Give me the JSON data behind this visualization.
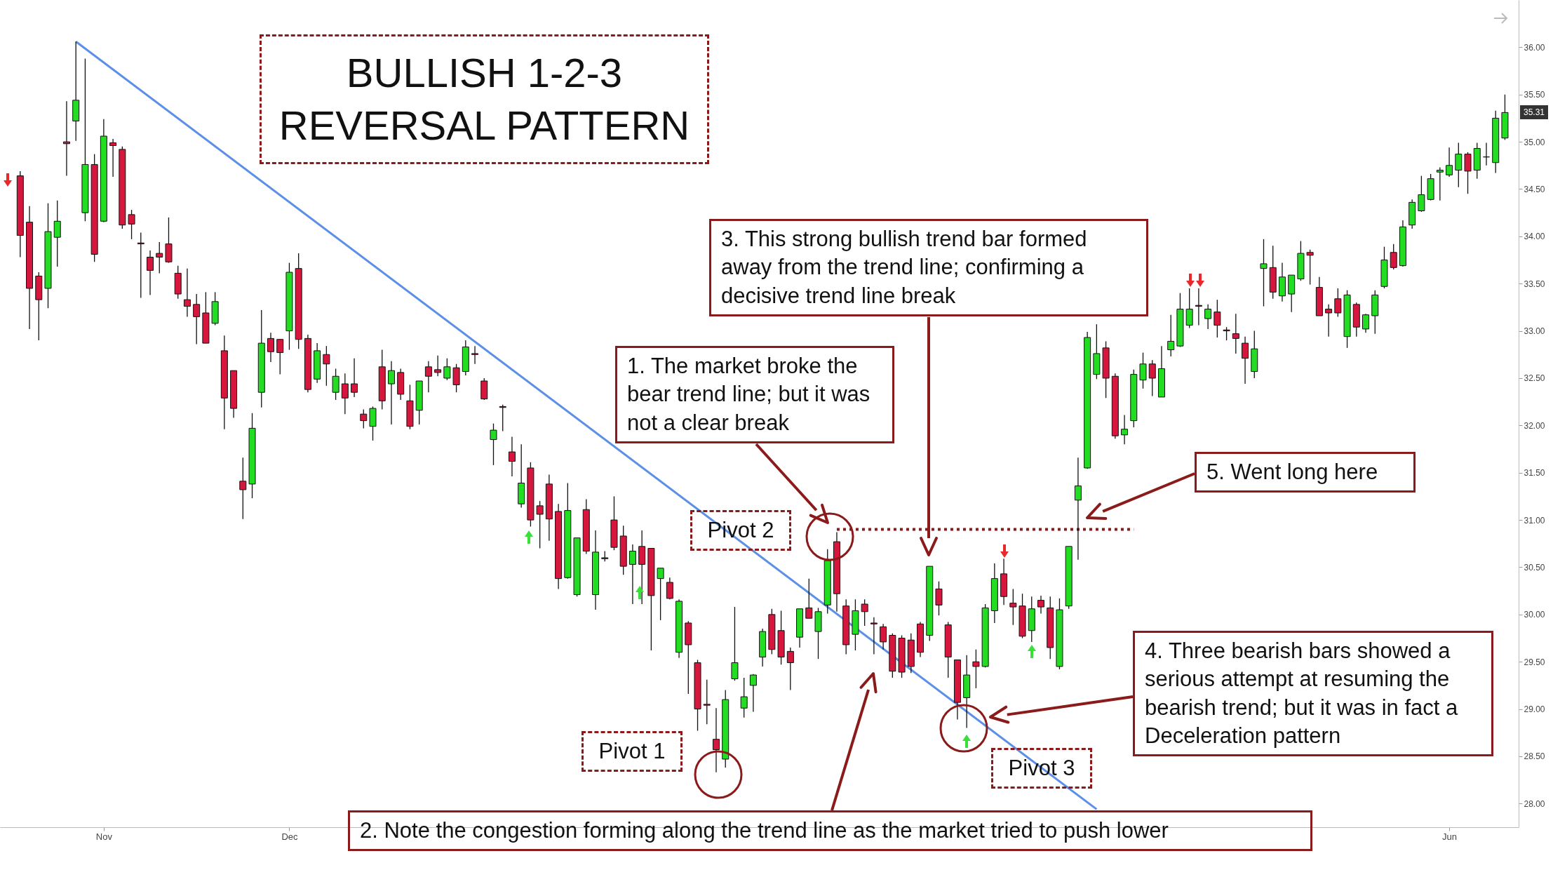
{
  "chart_data": {
    "type": "candlestick",
    "title": "BULLISH 1-2-3 REVERSAL PATTERN",
    "categories": [
      null,
      null,
      null,
      null,
      null,
      null,
      null,
      null,
      null,
      "Nov",
      null,
      null,
      null,
      null,
      null,
      null,
      null,
      null,
      null,
      null,
      null,
      null,
      null,
      null,
      null,
      null,
      null,
      null,
      null,
      "Dec",
      null,
      null,
      null,
      null,
      null,
      null,
      null,
      null,
      null,
      null,
      null,
      null,
      null,
      null,
      null,
      null,
      null,
      null,
      null,
      null,
      null,
      null,
      null,
      null,
      null,
      null,
      null,
      null,
      null,
      null,
      null,
      null,
      null,
      null,
      null,
      null,
      null,
      null,
      null,
      null,
      null,
      null,
      null,
      null,
      null,
      null,
      null,
      null,
      null,
      null,
      null,
      null,
      null,
      null,
      null,
      null,
      null,
      null,
      null,
      null,
      null,
      null,
      null,
      null,
      null,
      null,
      null,
      null,
      null,
      null,
      null,
      null,
      null,
      null,
      null,
      null,
      null,
      null,
      null,
      null,
      null,
      null,
      null,
      null,
      null,
      null,
      null,
      null,
      null,
      null,
      null,
      null,
      null,
      null,
      null,
      null,
      null,
      null,
      null,
      null,
      null,
      null,
      null,
      null,
      null,
      null,
      null,
      null,
      null,
      null,
      null,
      null,
      null,
      null,
      null,
      null,
      null,
      null,
      null,
      null,
      null,
      null,
      null,
      null,
      "Jun",
      null,
      null,
      null,
      null,
      null,
      null
    ],
    "ohlc": [
      [
        34.64,
        34.69,
        33.78,
        34.01
      ],
      [
        34.15,
        34.32,
        33.02,
        33.45
      ],
      [
        33.58,
        33.62,
        32.9,
        33.33
      ],
      [
        33.45,
        34.35,
        33.24,
        34.05
      ],
      [
        33.99,
        34.38,
        33.68,
        34.16
      ],
      [
        35.0,
        35.43,
        34.64,
        34.98
      ],
      [
        35.22,
        36.06,
        35.01,
        35.44
      ],
      [
        34.25,
        35.88,
        34.16,
        34.76
      ],
      [
        34.76,
        34.87,
        33.73,
        33.81
      ],
      [
        34.16,
        35.24,
        34.15,
        35.06
      ],
      [
        34.99,
        35.03,
        34.63,
        34.96
      ],
      [
        34.92,
        34.95,
        34.08,
        34.12
      ],
      [
        34.23,
        34.28,
        33.97,
        34.13
      ],
      [
        33.93,
        34.04,
        33.35,
        33.92
      ],
      [
        33.78,
        33.85,
        33.38,
        33.64
      ],
      [
        33.82,
        33.94,
        33.61,
        33.78
      ],
      [
        33.92,
        34.2,
        33.72,
        33.73
      ],
      [
        33.61,
        33.69,
        33.34,
        33.39
      ],
      [
        33.33,
        33.66,
        33.15,
        33.26
      ],
      [
        33.28,
        33.39,
        32.86,
        33.15
      ],
      [
        33.19,
        33.41,
        32.87,
        32.87
      ],
      [
        33.08,
        33.41,
        33.06,
        33.31
      ],
      [
        32.79,
        32.95,
        31.96,
        32.29
      ],
      [
        32.58,
        32.58,
        32.08,
        32.18
      ],
      [
        31.41,
        31.66,
        31.01,
        31.32
      ],
      [
        31.38,
        32.13,
        31.23,
        31.97
      ],
      [
        32.35,
        33.22,
        32.19,
        32.87
      ],
      [
        32.92,
        32.98,
        32.67,
        32.78
      ],
      [
        32.91,
        32.91,
        32.54,
        32.77
      ],
      [
        33.0,
        33.72,
        32.8,
        33.62
      ],
      [
        33.66,
        33.82,
        32.81,
        32.91
      ],
      [
        32.92,
        32.96,
        32.35,
        32.38
      ],
      [
        32.49,
        32.87,
        32.45,
        32.79
      ],
      [
        32.75,
        32.84,
        32.42,
        32.65
      ],
      [
        32.35,
        32.6,
        32.27,
        32.52
      ],
      [
        32.44,
        32.55,
        32.12,
        32.29
      ],
      [
        32.44,
        32.71,
        32.3,
        32.35
      ],
      [
        32.12,
        32.17,
        31.97,
        32.05
      ],
      [
        31.99,
        32.2,
        31.84,
        32.18
      ],
      [
        32.62,
        32.8,
        32.17,
        32.26
      ],
      [
        32.44,
        32.68,
        32.01,
        32.58
      ],
      [
        32.56,
        32.6,
        32.27,
        32.33
      ],
      [
        32.26,
        32.43,
        31.96,
        31.99
      ],
      [
        32.16,
        32.47,
        32.01,
        32.47
      ],
      [
        32.62,
        32.68,
        32.35,
        32.52
      ],
      [
        32.59,
        32.74,
        32.52,
        32.56
      ],
      [
        32.5,
        32.71,
        32.48,
        32.62
      ],
      [
        32.61,
        32.65,
        32.35,
        32.43
      ],
      [
        32.57,
        32.9,
        32.53,
        32.83
      ],
      [
        32.76,
        32.84,
        32.65,
        32.75
      ],
      [
        32.47,
        32.5,
        32.27,
        32.28
      ],
      [
        31.85,
        32.02,
        31.58,
        31.95
      ],
      [
        32.2,
        32.22,
        31.94,
        32.19
      ],
      [
        31.72,
        31.88,
        31.46,
        31.62
      ],
      [
        31.17,
        31.8,
        31.13,
        31.39
      ],
      [
        31.55,
        31.61,
        30.93,
        31.0
      ],
      [
        31.15,
        31.2,
        30.7,
        31.06
      ],
      [
        31.38,
        31.48,
        30.78,
        31.01
      ],
      [
        31.09,
        31.17,
        30.27,
        30.38
      ],
      [
        30.39,
        31.39,
        30.38,
        31.1
      ],
      [
        30.21,
        30.81,
        30.19,
        30.81
      ],
      [
        31.11,
        31.22,
        30.64,
        30.67
      ],
      [
        30.21,
        30.89,
        30.05,
        30.66
      ],
      [
        30.6,
        30.67,
        30.56,
        30.59
      ],
      [
        31.0,
        31.25,
        30.68,
        30.71
      ],
      [
        30.83,
        30.94,
        30.42,
        30.51
      ],
      [
        30.53,
        30.74,
        30.11,
        30.67
      ],
      [
        30.72,
        30.89,
        30.11,
        30.53
      ],
      [
        30.7,
        30.7,
        29.62,
        30.2
      ],
      [
        30.38,
        30.49,
        29.94,
        30.49
      ],
      [
        30.34,
        30.39,
        30.16,
        30.17
      ],
      [
        29.6,
        30.16,
        29.54,
        30.14
      ],
      [
        29.91,
        29.93,
        29.16,
        29.68
      ],
      [
        29.49,
        29.52,
        28.77,
        29.0
      ],
      [
        29.05,
        29.31,
        28.84,
        29.04
      ],
      [
        28.68,
        29.01,
        28.33,
        28.57
      ],
      [
        28.47,
        29.2,
        28.38,
        29.1
      ],
      [
        29.32,
        30.08,
        29.3,
        29.49
      ],
      [
        29.01,
        29.33,
        28.91,
        29.13
      ],
      [
        29.25,
        29.37,
        28.97,
        29.36
      ],
      [
        29.55,
        29.85,
        29.45,
        29.82
      ],
      [
        30.0,
        30.06,
        29.58,
        29.63
      ],
      [
        29.83,
        30.04,
        29.47,
        29.55
      ],
      [
        29.61,
        29.65,
        29.2,
        29.49
      ],
      [
        29.76,
        30.06,
        29.65,
        30.06
      ],
      [
        30.07,
        30.38,
        29.96,
        29.96
      ],
      [
        29.82,
        30.07,
        29.53,
        30.03
      ],
      [
        30.1,
        30.69,
        30.01,
        30.57
      ],
      [
        30.77,
        30.87,
        30.03,
        30.22
      ],
      [
        30.09,
        30.16,
        29.58,
        29.68
      ],
      [
        29.79,
        30.16,
        29.62,
        30.04
      ],
      [
        30.11,
        30.16,
        29.88,
        30.03
      ],
      [
        29.91,
        29.97,
        29.58,
        29.9
      ],
      [
        29.87,
        29.9,
        29.63,
        29.71
      ],
      [
        29.78,
        29.8,
        29.33,
        29.4
      ],
      [
        29.75,
        29.78,
        29.33,
        29.39
      ],
      [
        29.73,
        29.8,
        29.38,
        29.45
      ],
      [
        29.9,
        29.92,
        29.55,
        29.6
      ],
      [
        29.78,
        30.51,
        29.72,
        30.51
      ],
      [
        30.27,
        30.35,
        29.99,
        30.1
      ],
      [
        29.89,
        29.92,
        29.33,
        29.55
      ],
      [
        29.52,
        29.52,
        28.89,
        29.07
      ],
      [
        29.12,
        29.57,
        28.8,
        29.36
      ],
      [
        29.5,
        29.63,
        29.22,
        29.45
      ],
      [
        29.45,
        30.11,
        29.44,
        30.07
      ],
      [
        30.04,
        30.54,
        29.91,
        30.38
      ],
      [
        30.43,
        30.59,
        30.1,
        30.19
      ],
      [
        30.12,
        30.27,
        29.89,
        30.08
      ],
      [
        30.09,
        30.22,
        29.75,
        29.77
      ],
      [
        29.83,
        30.19,
        29.71,
        30.06
      ],
      [
        30.15,
        30.2,
        30.01,
        30.08
      ],
      [
        30.07,
        30.19,
        29.53,
        29.65
      ],
      [
        29.45,
        30.17,
        29.42,
        30.05
      ],
      [
        30.09,
        30.72,
        30.06,
        30.72
      ],
      [
        31.21,
        31.66,
        30.58,
        31.36
      ],
      [
        31.55,
        32.99,
        31.54,
        32.93
      ],
      [
        32.54,
        33.07,
        32.49,
        32.76
      ],
      [
        32.82,
        32.89,
        32.29,
        32.5
      ],
      [
        32.52,
        32.55,
        31.86,
        31.89
      ],
      [
        31.9,
        32.11,
        31.8,
        31.96
      ],
      [
        32.05,
        32.59,
        31.98,
        32.54
      ],
      [
        32.48,
        32.77,
        32.39,
        32.65
      ],
      [
        32.65,
        32.69,
        32.31,
        32.5
      ],
      [
        32.3,
        32.84,
        32.3,
        32.6
      ],
      [
        32.8,
        33.17,
        32.73,
        32.89
      ],
      [
        32.84,
        33.4,
        32.83,
        33.23
      ],
      [
        33.06,
        33.45,
        33.03,
        33.23
      ],
      [
        33.27,
        33.45,
        33.06,
        33.26
      ],
      [
        33.13,
        33.28,
        33.02,
        33.23
      ],
      [
        33.2,
        33.33,
        32.93,
        33.06
      ],
      [
        33.01,
        33.04,
        32.9,
        33.0
      ],
      [
        32.97,
        33.18,
        32.76,
        32.92
      ],
      [
        32.87,
        32.94,
        32.44,
        32.71
      ],
      [
        32.57,
        33.0,
        32.5,
        32.81
      ],
      [
        33.66,
        33.97,
        33.26,
        33.71
      ],
      [
        33.67,
        33.9,
        33.34,
        33.41
      ],
      [
        33.37,
        33.72,
        33.31,
        33.57
      ],
      [
        33.39,
        33.59,
        33.2,
        33.59
      ],
      [
        33.55,
        33.95,
        33.53,
        33.82
      ],
      [
        33.83,
        33.86,
        33.49,
        33.8
      ],
      [
        33.46,
        33.57,
        33.16,
        33.16
      ],
      [
        33.23,
        33.28,
        32.94,
        33.19
      ],
      [
        33.34,
        33.45,
        33.15,
        33.19
      ],
      [
        32.94,
        33.43,
        32.82,
        33.38
      ],
      [
        33.28,
        33.3,
        32.94,
        33.04
      ],
      [
        33.02,
        33.18,
        32.98,
        33.17
      ],
      [
        33.16,
        33.43,
        32.97,
        33.38
      ],
      [
        33.47,
        33.89,
        33.45,
        33.75
      ],
      [
        33.83,
        33.92,
        33.65,
        33.67
      ],
      [
        33.69,
        34.17,
        33.68,
        34.1
      ],
      [
        34.12,
        34.39,
        34.08,
        34.36
      ],
      [
        34.27,
        34.64,
        34.26,
        34.44
      ],
      [
        34.39,
        34.66,
        34.38,
        34.61
      ],
      [
        34.68,
        34.73,
        34.38,
        34.7
      ],
      [
        34.65,
        34.94,
        34.63,
        34.75
      ],
      [
        34.7,
        34.99,
        34.52,
        34.87
      ],
      [
        34.87,
        34.89,
        34.45,
        34.69
      ],
      [
        34.7,
        34.99,
        34.61,
        34.93
      ],
      [
        34.84,
        34.99,
        34.75,
        34.84
      ],
      [
        34.78,
        35.33,
        34.67,
        35.25
      ],
      [
        35.04,
        35.5,
        35.02,
        35.31
      ]
    ],
    "series": [
      {
        "type": "line",
        "values": [
          null,
          null,
          null,
          null,
          null,
          null,
          36.06,
          null,
          null,
          null,
          null,
          null,
          null,
          null,
          null,
          null,
          null,
          null,
          null,
          null,
          null,
          null,
          null,
          null,
          null,
          null,
          null,
          null,
          null,
          null,
          null,
          null,
          null,
          null,
          null,
          null,
          null,
          null,
          null,
          null,
          null,
          null,
          null,
          null,
          null,
          null,
          null,
          null,
          null,
          null,
          null,
          null,
          null,
          null,
          null,
          null,
          null,
          null,
          null,
          null,
          null,
          null,
          null,
          null,
          null,
          null,
          null,
          null,
          null,
          null,
          null,
          null,
          null,
          null,
          null,
          null,
          null,
          null,
          null,
          null,
          null,
          null,
          null,
          null,
          null,
          null,
          null,
          null,
          null,
          null,
          null,
          null,
          null,
          null,
          null,
          null,
          null,
          null,
          null,
          null,
          null,
          null,
          null,
          null,
          null,
          null,
          null,
          null,
          null,
          null,
          null,
          null,
          null,
          null,
          null,
          null,
          27.94,
          null,
          null,
          null,
          null,
          null,
          null,
          null,
          null,
          null,
          null,
          null,
          null,
          null,
          null,
          null,
          null,
          null,
          null,
          null,
          null,
          null,
          null,
          null,
          null,
          null,
          null,
          null,
          null,
          null,
          null,
          null,
          null,
          null,
          null,
          null,
          null,
          null,
          null,
          null,
          null,
          null,
          null,
          null,
          null
        ],
        "color": "#5b8fe8"
      },
      {
        "type": "line",
        "values": [
          null,
          null,
          null,
          null,
          null,
          null,
          null,
          null,
          null,
          null,
          null,
          null,
          null,
          null,
          null,
          null,
          null,
          null,
          null,
          null,
          null,
          null,
          null,
          null,
          null,
          null,
          null,
          null,
          null,
          null,
          null,
          null,
          null,
          null,
          null,
          null,
          null,
          null,
          null,
          null,
          null,
          null,
          null,
          null,
          null,
          null,
          null,
          null,
          null,
          null,
          null,
          null,
          null,
          null,
          null,
          null,
          null,
          null,
          null,
          null,
          null,
          null,
          null,
          null,
          null,
          null,
          null,
          null,
          null,
          null,
          null,
          null,
          null,
          null,
          null,
          null,
          null,
          null,
          null,
          null,
          null,
          null,
          null,
          null,
          null,
          null,
          null,
          null,
          30.9,
          null,
          null,
          null,
          null,
          null,
          null,
          null,
          null,
          null,
          null,
          null,
          null,
          null,
          null,
          null,
          null,
          null,
          null,
          null,
          null,
          null,
          null,
          null,
          null,
          null,
          null,
          null,
          null,
          null,
          null,
          null,
          30.9,
          null,
          null,
          null,
          null,
          null,
          null,
          null,
          null,
          null,
          null,
          null,
          null,
          null,
          null,
          null,
          null,
          null,
          null,
          null,
          null,
          null,
          null,
          null,
          null,
          null,
          null,
          null,
          null,
          null,
          null,
          null,
          null,
          null,
          null,
          null,
          null,
          null,
          null,
          null,
          null
        ],
        "color": "#8b1a1a",
        "line_style": "dotted"
      }
    ],
    "ylim": [
      27.75,
      36.5
    ],
    "yticks": [
      {
        "value": 28,
        "label": "28.00"
      },
      {
        "value": 28.5,
        "label": "28.50"
      },
      {
        "value": 29,
        "label": "29.00"
      },
      {
        "value": 29.5,
        "label": "29.50"
      },
      {
        "value": 30,
        "label": "30.00"
      },
      {
        "value": 30.5,
        "label": "30.50"
      },
      {
        "value": 31,
        "label": "31.00"
      },
      {
        "value": 31.5,
        "label": "31.50"
      },
      {
        "value": 32,
        "label": "32.00"
      },
      {
        "value": 32.5,
        "label": "32.50"
      },
      {
        "value": 33,
        "label": "33.00"
      },
      {
        "value": 33.5,
        "label": "33.50"
      },
      {
        "value": 34,
        "label": "34.00"
      },
      {
        "value": 34.5,
        "label": "34.50"
      },
      {
        "value": 35,
        "label": "35.00"
      },
      {
        "value": 35.5,
        "label": "35.50"
      },
      {
        "value": 36,
        "label": "36.00"
      }
    ],
    "annotations": [
      "Pivot 1",
      "Pivot 2",
      "Pivot 3",
      "1. The market broke the bear trend line; but it was not a clear break",
      "2. Note the congestion forming along the trend line as the market tried to push lower",
      "3. This strong bullish trend bar formed away from the trend line; confirming a decisive trend line break",
      "4. Three bearish bars showed a serious attempt at resuming the bearish trend; but it was in fact a Deceleration pattern",
      "5. Went long here",
      "35.31"
    ]
  }
}
